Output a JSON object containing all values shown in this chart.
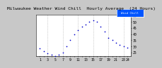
{
  "title1": "Milwaukee Weather Wind Chill",
  "title2": "Hourly Average",
  "title3": "(24 Hours)",
  "hours": [
    1,
    2,
    3,
    4,
    5,
    6,
    7,
    8,
    9,
    10,
    11,
    12,
    13,
    14,
    15,
    16,
    17,
    18,
    19,
    20,
    21,
    22,
    23,
    24
  ],
  "wind_chill": [
    28,
    26,
    24,
    23,
    22,
    23,
    25,
    30,
    35,
    40,
    43,
    46,
    48,
    50,
    51,
    50,
    46,
    42,
    37,
    35,
    33,
    31,
    30,
    29
  ],
  "dot_color": "#0000cc",
  "legend_color": "#0055ff",
  "legend_label": "Wind Chill",
  "bg_color": "#c8c8c8",
  "plot_bg": "#ffffff",
  "ylim": [
    22,
    56
  ],
  "yticks": [
    25,
    30,
    35,
    40,
    45,
    50,
    55
  ],
  "xlim": [
    0,
    25
  ],
  "grid_hours": [
    3,
    7,
    11,
    15,
    19,
    23
  ],
  "grid_color": "#aaaaaa",
  "title_fontsize": 4.5,
  "tick_fontsize": 3.5
}
